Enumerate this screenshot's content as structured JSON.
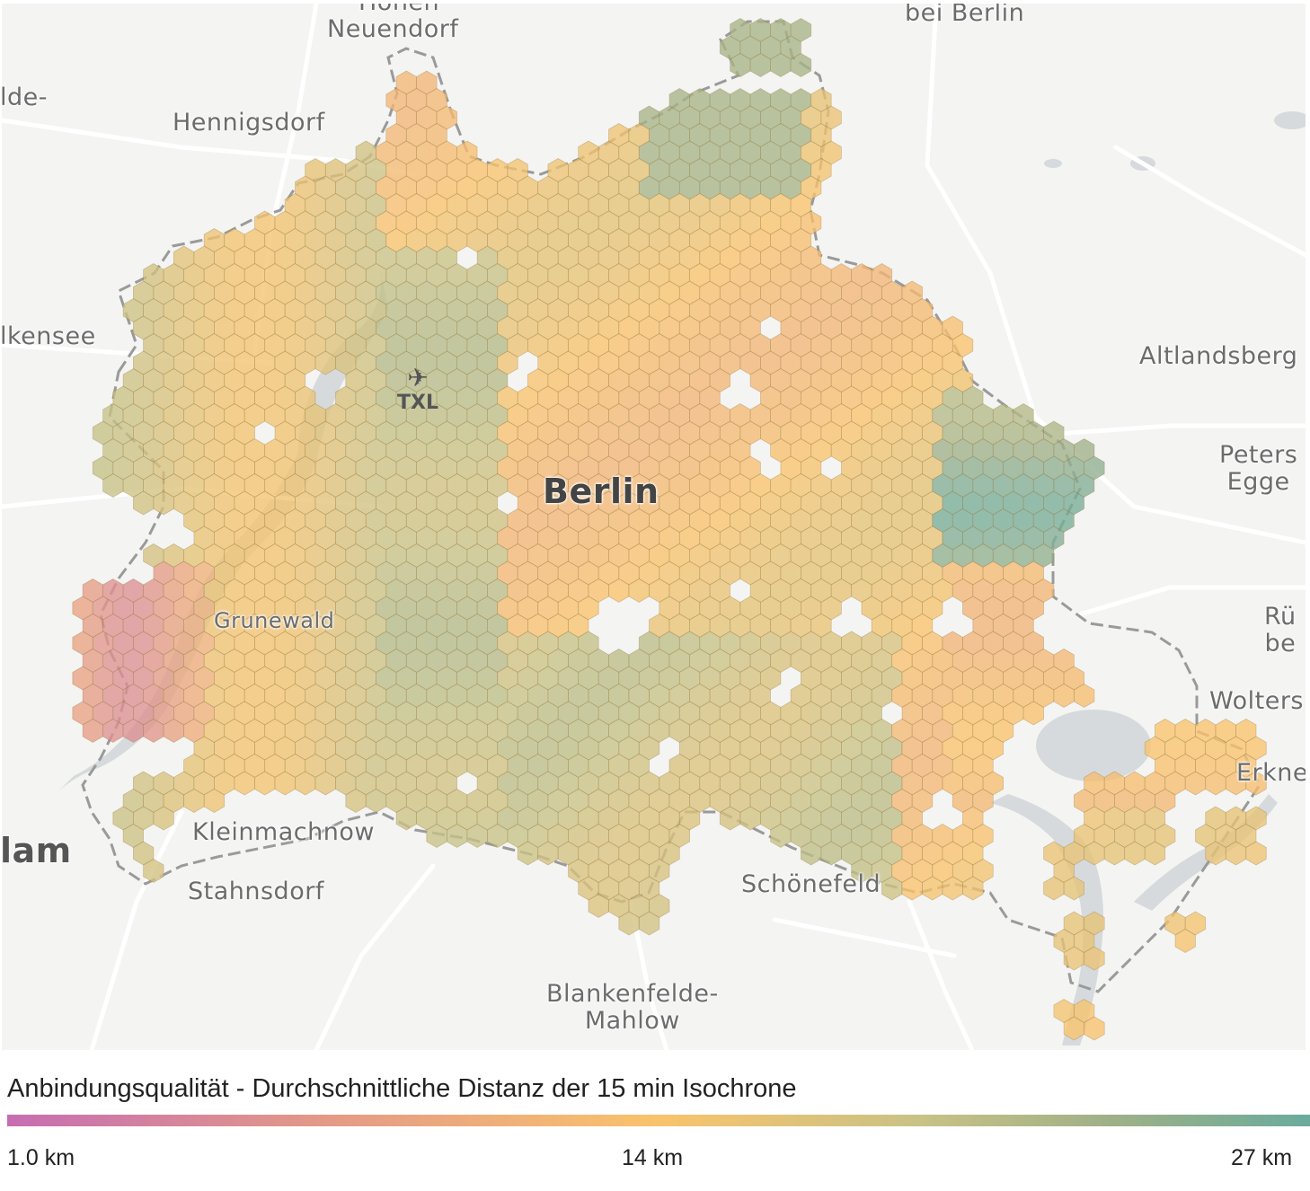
{
  "map": {
    "places": [
      {
        "id": "neuendorf",
        "label": "Neuendorf"
      },
      {
        "id": "hohen-top",
        "label": "Hohen"
      },
      {
        "id": "bei-berlin",
        "label": "bei Berlin"
      },
      {
        "id": "falkensee-top",
        "label": "lde-"
      },
      {
        "id": "hennigsdorf",
        "label": "Hennigsdorf"
      },
      {
        "id": "falkensee",
        "label": "lkensee"
      },
      {
        "id": "altlandsberg",
        "label": "Altlandsberg"
      },
      {
        "id": "petershagen",
        "label": "Peters\nEgge"
      },
      {
        "id": "berlin",
        "label": "Berlin"
      },
      {
        "id": "grunewald",
        "label": "Grunewald"
      },
      {
        "id": "ruedersdorf",
        "label": "Rü\nbe"
      },
      {
        "id": "woltersdorf",
        "label": "Wolters"
      },
      {
        "id": "erkner",
        "label": "Erkne"
      },
      {
        "id": "kleinmachnow",
        "label": "Kleinmachnow"
      },
      {
        "id": "potsdam",
        "label": "lam"
      },
      {
        "id": "stahnsdorf",
        "label": "Stahnsdorf"
      },
      {
        "id": "schoenefeld",
        "label": "Schönefeld"
      },
      {
        "id": "blankenfelde",
        "label": "Blankenfelde-\nMahlow"
      }
    ],
    "airport": {
      "code": "TXL",
      "icon": "airplane-icon"
    },
    "colors": {
      "background": "#f4f4f3",
      "water": "#d5d9dc",
      "roads": "#ffffff",
      "border": "#9a9a9a"
    }
  },
  "legend": {
    "title": "Anbindungsqualität - Durchschnittliche Distanz der 15 min Isochrone",
    "min_label": "1.0 km",
    "mid_label": "14 km",
    "max_label": "27 km",
    "scale_colors": [
      "#c66db2",
      "#e49b86",
      "#f9c36c",
      "#c8c285",
      "#9eb088",
      "#6aab9c"
    ]
  }
}
